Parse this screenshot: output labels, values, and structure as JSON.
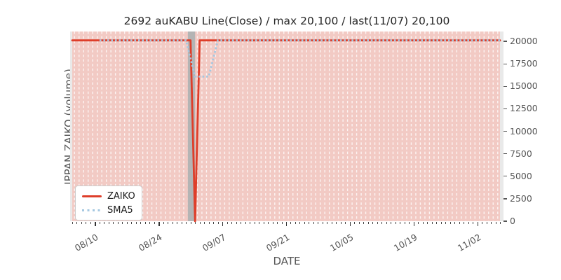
{
  "chart_data": {
    "type": "line",
    "title": "2692 auKABU Line(Close) / max 20,100 / last(11/07) 20,100",
    "xlabel": "DATE",
    "ylabel": "IPPAN ZAIKO (volume)",
    "x_range": {
      "start": "08/05",
      "end": "11/07"
    },
    "x_major_ticks": [
      "08/10",
      "08/24",
      "09/07",
      "09/21",
      "10/05",
      "10/19",
      "11/02"
    ],
    "y_ticks": [
      0,
      2500,
      5000,
      7500,
      10000,
      12500,
      15000,
      17500,
      20000
    ],
    "y_tick_side": "right",
    "ylim": [
      0,
      21105
    ],
    "grid": "dashed white vertical line per day over bars",
    "stats": {
      "max": "20,100",
      "last_date": "11/07",
      "last_value": "20,100"
    },
    "bars": {
      "description": "daily volume bars filling plot height",
      "value": 20100,
      "color": "#f2cac4"
    },
    "highlight_span": {
      "from": "08/30",
      "to": "09/01",
      "color": "#b4b4b4"
    },
    "series": [
      {
        "name": "ZAIKO",
        "color": "#de3e2a",
        "style": "solid",
        "points": [
          [
            "08/05",
            20100
          ],
          [
            "08/31",
            20100
          ],
          [
            "09/01",
            0
          ],
          [
            "09/02",
            20100
          ],
          [
            "11/07",
            20100
          ]
        ]
      },
      {
        "name": "SMA5",
        "color": "#a5c8e1",
        "style": "dotted",
        "points": [
          [
            "08/11",
            20100
          ],
          [
            "08/30",
            20100
          ],
          [
            "09/01",
            16080
          ],
          [
            "09/04",
            16080
          ],
          [
            "09/06",
            20100
          ],
          [
            "11/07",
            20100
          ]
        ]
      }
    ],
    "legend": {
      "position": "lower left",
      "entries": [
        {
          "label": "ZAIKO",
          "color": "#de3e2a",
          "style": "solid"
        },
        {
          "label": "SMA5",
          "color": "#a5c8e1",
          "style": "dotted"
        }
      ]
    },
    "colors": {
      "axes_background": "#e9e9e9",
      "figure_background": "#ffffff",
      "day_grid_dash": "rgba(255,255,255,0.78)",
      "tick_text": "#555555",
      "title_text": "#262626"
    }
  }
}
